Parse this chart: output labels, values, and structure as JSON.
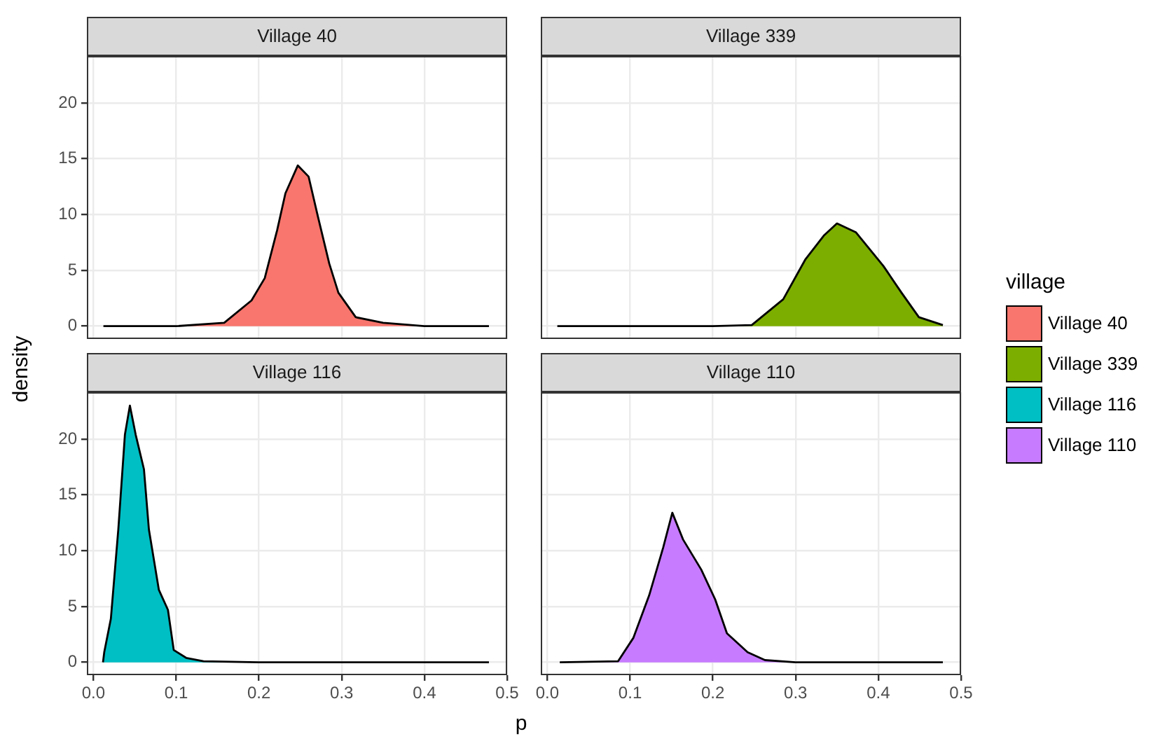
{
  "chart_data": [
    {
      "type": "area",
      "title": "Village 40",
      "ylabel": "density",
      "legend": "right",
      "legend_title": "village",
      "tick_labels": "y",
      "grid": true,
      "xlim": [
        -0.008,
        0.5
      ],
      "ylim": [
        -1.15,
        24.2
      ],
      "xticks": [
        0,
        0.1,
        0.2,
        0.3,
        0.4,
        0.5
      ],
      "yticks": [
        0,
        5,
        10,
        15,
        20
      ],
      "series": [
        {
          "name": "Village 40",
          "color": "#f8766d",
          "x": [
            0.012,
            0.1,
            0.158,
            0.191,
            0.207,
            0.222,
            0.232,
            0.247,
            0.26,
            0.271,
            0.285,
            0.296,
            0.317,
            0.35,
            0.4,
            0.478
          ],
          "values": [
            0,
            0,
            0.3,
            2.3,
            4.3,
            8.6,
            11.9,
            14.4,
            13.4,
            9.9,
            5.6,
            3.0,
            0.8,
            0.3,
            0,
            0
          ]
        }
      ]
    },
    {
      "type": "area",
      "title": "Village 339",
      "legend": "right",
      "tick_labels": false,
      "grid": true,
      "xlim": [
        -0.008,
        0.5
      ],
      "ylim": [
        -1.15,
        24.2
      ],
      "xticks": [
        0,
        0.1,
        0.2,
        0.3,
        0.4,
        0.5
      ],
      "yticks": [
        0,
        5,
        10,
        15,
        20
      ],
      "series": [
        {
          "name": "Village 339",
          "color": "#7cae00",
          "x": [
            0.012,
            0.2,
            0.247,
            0.285,
            0.312,
            0.334,
            0.35,
            0.373,
            0.406,
            0.428,
            0.449,
            0.478
          ],
          "values": [
            0,
            0,
            0.1,
            2.4,
            6.0,
            8.1,
            9.2,
            8.4,
            5.4,
            3.0,
            0.8,
            0.1
          ]
        }
      ]
    },
    {
      "type": "area",
      "title": "Village 116",
      "xlabel": "p",
      "legend": "right",
      "grid": true,
      "xlim": [
        -0.008,
        0.5
      ],
      "ylim": [
        -1.15,
        24.2
      ],
      "xticks": [
        {
          "value": 0,
          "label": "0.0"
        },
        0.1,
        0.2,
        0.3,
        0.4,
        0.5
      ],
      "yticks": [
        0,
        5,
        10,
        15,
        20
      ],
      "series": [
        {
          "name": "Village 116",
          "color": "#00bfc4",
          "x": [
            0.0115,
            0.013,
            0.021,
            0.03,
            0.038,
            0.044,
            0.051,
            0.061,
            0.067,
            0.079,
            0.09,
            0.097,
            0.112,
            0.133,
            0.2,
            0.478
          ],
          "values": [
            0,
            0.9,
            3.9,
            11.9,
            20.4,
            23.0,
            20.4,
            17.3,
            11.9,
            6.5,
            4.7,
            1.1,
            0.4,
            0.1,
            0,
            0
          ]
        }
      ]
    },
    {
      "type": "area",
      "title": "Village 110",
      "legend": "right",
      "tick_labels": "x",
      "grid": true,
      "xlim": [
        -0.008,
        0.5
      ],
      "ylim": [
        -1.15,
        24.2
      ],
      "xticks": [
        {
          "value": 0,
          "label": "0.0"
        },
        0.1,
        0.2,
        0.3,
        0.4,
        0.5
      ],
      "yticks": [
        0,
        5,
        10,
        15,
        20
      ],
      "series": [
        {
          "name": "Village 110",
          "color": "#c77cff",
          "x": [
            0.015,
            0.0855,
            0.104,
            0.123,
            0.14,
            0.151,
            0.164,
            0.186,
            0.203,
            0.217,
            0.242,
            0.263,
            0.3,
            0.478
          ],
          "values": [
            0,
            0.1,
            2.2,
            6.0,
            10.3,
            13.4,
            11.0,
            8.3,
            5.6,
            2.6,
            0.9,
            0.2,
            0,
            0
          ]
        }
      ]
    }
  ]
}
